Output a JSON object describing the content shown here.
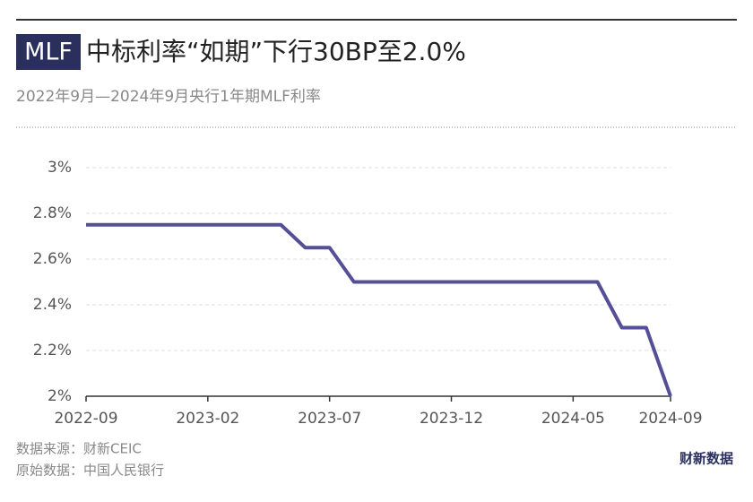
{
  "chart_data": {
    "type": "line",
    "badge": "MLF",
    "title": "中标利率“如期”下行30BP至2.0%",
    "subtitle": "2022年9月—2024年9月央行1年期MLF利率",
    "source": "数据来源：财新CEIC",
    "origin": "原始数据：中国人民银行",
    "logo": "财新数据",
    "categories": [
      "2022-09",
      null,
      null,
      null,
      null,
      "2023-02",
      null,
      null,
      null,
      null,
      "2023-07",
      null,
      null,
      null,
      null,
      "2023-12",
      null,
      null,
      null,
      null,
      "2024-05",
      null,
      null,
      null,
      "2024-09"
    ],
    "series": [
      {
        "name": "MLF",
        "color": "#544f96",
        "values": [
          2.75,
          2.75,
          2.75,
          2.75,
          2.75,
          2.75,
          2.75,
          2.75,
          2.75,
          2.65,
          2.65,
          2.5,
          2.5,
          2.5,
          2.5,
          2.5,
          2.5,
          2.5,
          2.5,
          2.5,
          2.5,
          2.5,
          2.3,
          2.3,
          2.0
        ]
      }
    ],
    "ylim": [
      2,
      3
    ],
    "yticks": [
      {
        "value": 2,
        "label": "2%"
      },
      {
        "value": 2.2,
        "label": "2.2%"
      },
      {
        "value": 2.4,
        "label": "2.4%"
      },
      {
        "value": 2.6,
        "label": "2.6%"
      },
      {
        "value": 2.8,
        "label": "2.8%"
      },
      {
        "value": 3,
        "label": "3%"
      }
    ],
    "grid": true
  }
}
